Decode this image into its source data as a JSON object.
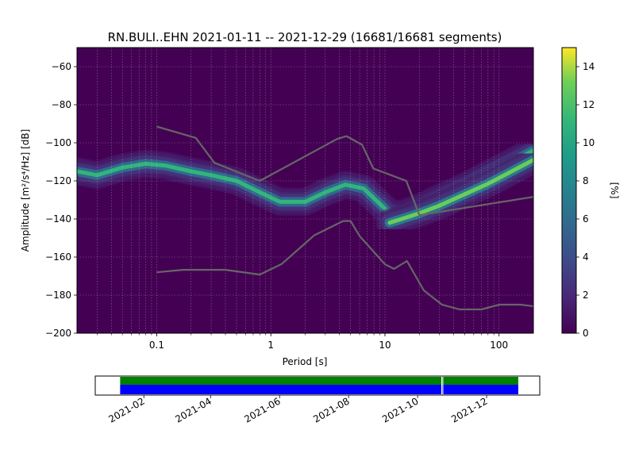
{
  "chart_data": [
    {
      "type": "heatmap",
      "title": "RN.BULI..EHN   2021-01-11 -- 2021-12-29  (16681/16681 segments)",
      "xlabel": "Period [s]",
      "ylabel": "Amplitude [m²/s⁴/Hz] [dB]",
      "xscale": "log",
      "xlim": [
        0.02,
        200
      ],
      "ylim": [
        -200,
        -50
      ],
      "xticks": [
        {
          "v": 0.1,
          "label": "0.1"
        },
        {
          "v": 1,
          "label": "1"
        },
        {
          "v": 10,
          "label": "10"
        },
        {
          "v": 100,
          "label": "100"
        }
      ],
      "yticks": [
        {
          "v": -60,
          "label": "−60"
        },
        {
          "v": -80,
          "label": "−80"
        },
        {
          "v": -100,
          "label": "−100"
        },
        {
          "v": -120,
          "label": "−120"
        },
        {
          "v": -140,
          "label": "−140"
        },
        {
          "v": -160,
          "label": "−160"
        },
        {
          "v": -180,
          "label": "−180"
        },
        {
          "v": -200,
          "label": "−200"
        }
      ],
      "grid": true,
      "colorbar": {
        "label": "[%]",
        "range": [
          0,
          15
        ],
        "ticks": [
          {
            "v": 0,
            "label": "0"
          },
          {
            "v": 2,
            "label": "2"
          },
          {
            "v": 4,
            "label": "4"
          },
          {
            "v": 6,
            "label": "6"
          },
          {
            "v": 8,
            "label": "8"
          },
          {
            "v": 10,
            "label": "10"
          },
          {
            "v": 12,
            "label": "12"
          },
          {
            "v": 14,
            "label": "14"
          }
        ]
      },
      "noise_model_high": {
        "x": [
          0.1,
          0.22,
          0.32,
          0.8,
          3.8,
          4.6,
          6.3,
          7.9,
          15.4,
          20,
          354.8
        ],
        "y": [
          -91.5,
          -97.4,
          -110.5,
          -120,
          -98,
          -96.5,
          -101,
          -113.5,
          -120,
          -138,
          -126
        ]
      },
      "noise_model_low": {
        "x": [
          0.1,
          0.17,
          0.4,
          0.8,
          1.24,
          2.4,
          4.3,
          5,
          6,
          10,
          12,
          15.6,
          21.9,
          31.6,
          45,
          70,
          101,
          154,
          328
        ],
        "y": [
          -168,
          -166.7,
          -166.7,
          -169.2,
          -163.7,
          -148.6,
          -141.1,
          -141.1,
          -149,
          -163.8,
          -166.2,
          -162.1,
          -177.5,
          -185,
          -187.5,
          -187.5,
          -185,
          -185,
          -187.5
        ]
      },
      "density_bands": [
        {
          "peak": 11,
          "x": [
            0.02,
            0.03,
            0.05,
            0.08,
            0.12,
            0.2,
            0.3,
            0.5,
            0.8,
            1.2,
            2,
            3,
            4.5,
            6.5,
            9,
            11,
            14,
            20,
            30,
            50,
            80,
            120,
            200
          ],
          "y": [
            -115,
            -117,
            -113,
            -111,
            -112,
            -115,
            -117,
            -120,
            -126,
            -131,
            -131,
            -126,
            -122,
            -124,
            -132,
            -137,
            -137.5,
            -134,
            -129,
            -123,
            -116.5,
            -111,
            -104
          ]
        },
        {
          "peak": 13,
          "x": [
            11,
            14,
            20,
            30,
            50,
            80,
            120,
            200
          ],
          "y": [
            -142,
            -140,
            -137,
            -133,
            -127,
            -121.5,
            -116,
            -109
          ]
        }
      ]
    },
    {
      "type": "timeline",
      "ticks": [
        {
          "v": "2021-02-01",
          "label": "2021-02"
        },
        {
          "v": "2021-04-01",
          "label": "2021-04"
        },
        {
          "v": "2021-06-01",
          "label": "2021-06"
        },
        {
          "v": "2021-08-01",
          "label": "2021-08"
        },
        {
          "v": "2021-10-01",
          "label": "2021-10"
        },
        {
          "v": "2021-12-01",
          "label": "2021-12"
        }
      ],
      "range": [
        "2020-12-20",
        "2022-01-17"
      ],
      "coverage": {
        "start": "2021-01-11",
        "end": "2021-12-29",
        "gaps": [
          "2021-10-22",
          "2021-10-23"
        ]
      },
      "colors": {
        "top": "#008000",
        "bottom": "#0000ff"
      }
    }
  ],
  "colors": {
    "background": "#440154",
    "grid": "#bbbbbb",
    "noise_model": "#666666"
  }
}
